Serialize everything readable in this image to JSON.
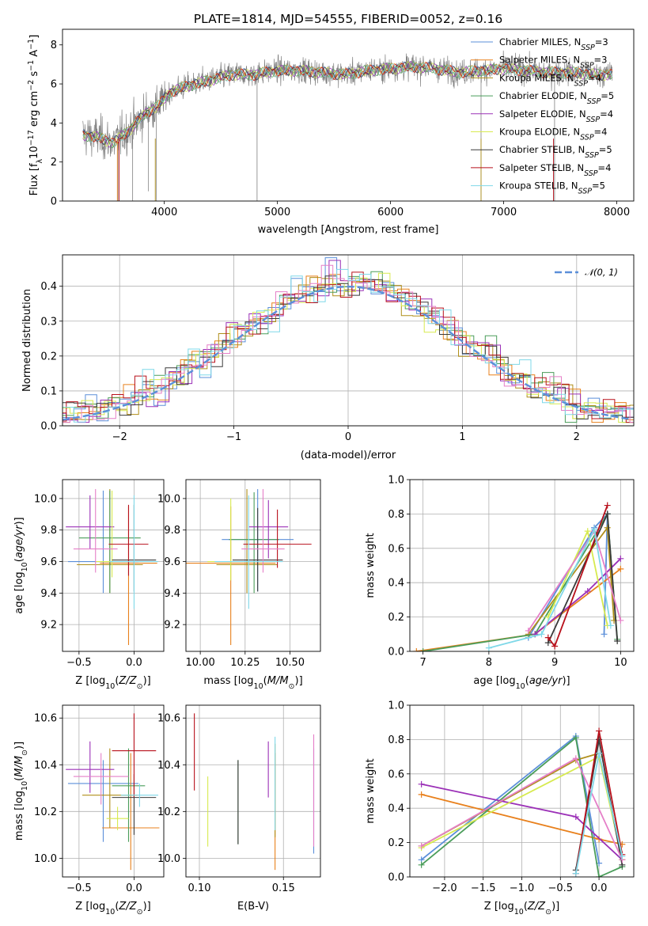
{
  "chart_data": [
    {
      "id": "spectrum",
      "type": "line",
      "title": "PLATE=1814, MJD=54555, FIBERID=0052, z=0.16",
      "xlabel": "wavelength [Angstrom, rest frame]",
      "ylabel": "Flux [f_λ 10^-17 erg cm^-2 s^-1 A^-1]",
      "xlim": [
        3100,
        8150
      ],
      "ylim": [
        0,
        8.8
      ],
      "xticks": [
        4000,
        5000,
        6000,
        7000,
        8000
      ],
      "yticks": [
        0,
        2,
        4,
        6,
        8
      ],
      "grid": false,
      "legend_position": "top-right",
      "series": [
        {
          "name": "Chabrier MILES, N_SSP=3",
          "color": "#5b8fd9"
        },
        {
          "name": "Salpeter MILES, N_SSP=3",
          "color": "#e8801c"
        },
        {
          "name": "Kroupa MILES, N_SSP=4",
          "color": "#b08f1a"
        },
        {
          "name": "Chabrier ELODIE, N_SSP=5",
          "color": "#4a9d5a"
        },
        {
          "name": "Salpeter ELODIE, N_SSP=4",
          "color": "#9b30b7"
        },
        {
          "name": "Kroupa ELODIE, N_SSP=4",
          "color": "#d7ea4f"
        },
        {
          "name": "Chabrier STELIB, N_SSP=5",
          "color": "#3a3a3a"
        },
        {
          "name": "Salpeter STELIB, N_SSP=4",
          "color": "#b8101b"
        },
        {
          "name": "Kroupa STELIB, N_SSP=5",
          "color": "#7fd8e8"
        }
      ],
      "data_color": "#808080",
      "model_anchor_x": [
        3280,
        3400,
        3550,
        3700,
        3850,
        3950,
        4050,
        4200,
        4400,
        4600,
        4800,
        5000,
        5200,
        5400,
        5600,
        5800,
        6000,
        6200,
        6400,
        6600,
        6800,
        7000,
        7200,
        7400,
        7600,
        7800,
        7960
      ],
      "model_anchor_y": [
        3.4,
        3.3,
        3.0,
        3.7,
        4.6,
        4.9,
        5.6,
        5.9,
        6.2,
        6.5,
        6.5,
        6.7,
        6.7,
        6.6,
        6.5,
        6.7,
        6.8,
        6.9,
        6.8,
        6.6,
        6.7,
        6.8,
        6.7,
        6.6,
        6.6,
        6.5,
        6.5
      ]
    },
    {
      "id": "residuals",
      "type": "histogram",
      "xlabel": "(data-model)/error",
      "ylabel": "Normed distribution",
      "xlim": [
        -2.5,
        2.5
      ],
      "ylim": [
        0,
        0.49
      ],
      "xticks": [
        -2,
        -1,
        0,
        1,
        2
      ],
      "yticks": [
        0.0,
        0.1,
        0.2,
        0.3,
        0.4
      ],
      "grid": true,
      "legend": "𝒩(0, 1)",
      "legend_position": "top-right",
      "normal_curve": {
        "mu": 0,
        "sigma": 1,
        "color": "#5b8fd9"
      }
    },
    {
      "id": "age-vs-Z",
      "type": "scatter",
      "xlabel": "Z [log10(Z/Z⊙)]",
      "ylabel": "age [log10(age/yr)]",
      "xlim": [
        -0.65,
        0.27
      ],
      "ylim": [
        9.03,
        10.12
      ],
      "xticks": [
        -0.5,
        0.0
      ],
      "yticks": [
        9.2,
        9.4,
        9.6,
        9.8,
        10.0
      ],
      "grid": true,
      "points": [
        {
          "x": -0.28,
          "y": 9.6,
          "xerr": 0.32,
          "yerr": [
            0.2,
            0.45
          ],
          "color": "#5b8fd9"
        },
        {
          "x": -0.05,
          "y": 9.59,
          "xerr": 0.26,
          "yerr": [
            0.52,
            0.36
          ],
          "color": "#e8801c"
        },
        {
          "x": -0.22,
          "y": 9.58,
          "xerr": 0.3,
          "yerr": [
            0.18,
            0.48
          ],
          "color": "#b08f1a"
        },
        {
          "x": -0.22,
          "y": 9.75,
          "xerr": 0.28,
          "yerr": [
            0.35,
            0.3
          ],
          "color": "#4a9d5a"
        },
        {
          "x": -0.4,
          "y": 9.82,
          "xerr": 0.22,
          "yerr": [
            0.14,
            0.2
          ],
          "color": "#9b30b7"
        },
        {
          "x": -0.2,
          "y": 9.6,
          "xerr": 0.15,
          "yerr": [
            0.1,
            0.45
          ],
          "color": "#d7ea4f"
        },
        {
          "x": 0.0,
          "y": 9.61,
          "xerr": 0.2,
          "yerr": [
            0.2,
            0.35
          ],
          "color": "#3a3a3a"
        },
        {
          "x": -0.05,
          "y": 9.71,
          "xerr": 0.18,
          "yerr": [
            0.2,
            0.25
          ],
          "color": "#b8101b"
        },
        {
          "x": -0.35,
          "y": 9.68,
          "xerr": 0.2,
          "yerr": [
            0.15,
            0.38
          ],
          "color": "#e57fc8"
        },
        {
          "x": 0.0,
          "y": 9.6,
          "xerr": 0.22,
          "yerr": [
            0.3,
            0.42
          ],
          "color": "#7fd8e8"
        }
      ]
    },
    {
      "id": "age-vs-mass",
      "type": "scatter",
      "xlabel": "mass [log10(M/M⊙)]",
      "ylabel": "",
      "xlim": [
        9.92,
        10.67
      ],
      "ylim": [
        9.03,
        10.12
      ],
      "xticks": [
        10.0,
        10.25,
        10.5
      ],
      "yticks": [
        9.2,
        9.4,
        9.6,
        9.8,
        10.0
      ],
      "grid": true,
      "points": [
        {
          "x": 10.32,
          "y": 9.74,
          "xerr": 0.2,
          "yerr": [
            0.33,
            0.32
          ],
          "color": "#5b8fd9"
        },
        {
          "x": 10.17,
          "y": 9.59,
          "xerr": 0.25,
          "yerr": [
            0.52,
            0.36
          ],
          "color": "#e8801c"
        },
        {
          "x": 10.26,
          "y": 9.58,
          "xerr": 0.17,
          "yerr": [
            0.18,
            0.48
          ],
          "color": "#b08f1a"
        },
        {
          "x": 10.3,
          "y": 9.74,
          "xerr": 0.14,
          "yerr": [
            0.34,
            0.3
          ],
          "color": "#4a9d5a"
        },
        {
          "x": 10.38,
          "y": 9.82,
          "xerr": 0.11,
          "yerr": [
            0.2,
            0.17
          ],
          "color": "#9b30b7"
        },
        {
          "x": 10.17,
          "y": 9.6,
          "xerr": 0.13,
          "yerr": [
            0.12,
            0.4
          ],
          "color": "#d7ea4f"
        },
        {
          "x": 10.32,
          "y": 9.61,
          "xerr": 0.14,
          "yerr": [
            0.2,
            0.33
          ],
          "color": "#3a3a3a"
        },
        {
          "x": 10.43,
          "y": 9.71,
          "xerr": 0.19,
          "yerr": [
            0.15,
            0.22
          ],
          "color": "#b8101b"
        },
        {
          "x": 10.35,
          "y": 9.68,
          "xerr": 0.12,
          "yerr": [
            0.15,
            0.38
          ],
          "color": "#e57fc8"
        },
        {
          "x": 10.27,
          "y": 9.6,
          "xerr": 0.19,
          "yerr": [
            0.3,
            0.42
          ],
          "color": "#7fd8e8"
        }
      ]
    },
    {
      "id": "weight-vs-age",
      "type": "line",
      "xlabel": "age [log10(age/yr)]",
      "ylabel": "mass weight",
      "xlim": [
        6.8,
        10.2
      ],
      "ylim": [
        0,
        1.0
      ],
      "xticks": [
        7,
        8,
        9,
        10
      ],
      "yticks": [
        0.0,
        0.2,
        0.4,
        0.6,
        0.8,
        1.0
      ],
      "grid": true,
      "series": [
        {
          "color": "#5b8fd9",
          "x": [
            8.6,
            9.6,
            9.8,
            9.75
          ],
          "y": [
            0.08,
            0.72,
            0.8,
            0.1
          ]
        },
        {
          "color": "#e8801c",
          "x": [
            6.9,
            8.7,
            10.0
          ],
          "y": [
            0.0,
            0.1,
            0.48
          ]
        },
        {
          "color": "#b08f1a",
          "x": [
            8.6,
            9.8,
            9.9
          ],
          "y": [
            0.1,
            0.72,
            0.18
          ]
        },
        {
          "color": "#4a9d5a",
          "x": [
            7.0,
            8.7,
            9.8,
            9.95
          ],
          "y": [
            0.0,
            0.1,
            0.8,
            0.07
          ]
        },
        {
          "color": "#9b30b7",
          "x": [
            8.7,
            9.5,
            10.0
          ],
          "y": [
            0.1,
            0.35,
            0.54
          ]
        },
        {
          "color": "#d7ea4f",
          "x": [
            8.9,
            9.5,
            9.8
          ],
          "y": [
            0.2,
            0.7,
            0.15
          ]
        },
        {
          "color": "#3a3a3a",
          "x": [
            8.9,
            9.8,
            9.95
          ],
          "y": [
            0.05,
            0.8,
            0.06
          ]
        },
        {
          "color": "#b8101b",
          "x": [
            8.9,
            9.0,
            9.8
          ],
          "y": [
            0.08,
            0.03,
            0.85
          ]
        },
        {
          "color": "#e57fc8",
          "x": [
            8.6,
            9.6,
            10.0
          ],
          "y": [
            0.12,
            0.7,
            0.18
          ]
        },
        {
          "color": "#7fd8e8",
          "x": [
            8.0,
            8.8,
            9.6,
            9.85
          ],
          "y": [
            0.02,
            0.1,
            0.71,
            0.15
          ]
        }
      ]
    },
    {
      "id": "mass-vs-Z",
      "type": "scatter",
      "xlabel": "Z [log10(Z/Z⊙)]",
      "ylabel": "mass [log10(M/M⊙)]",
      "xlim": [
        -0.65,
        0.27
      ],
      "ylim": [
        9.92,
        10.655
      ],
      "xticks": [
        -0.5,
        0.0
      ],
      "yticks": [
        10.0,
        10.2,
        10.4,
        10.6
      ],
      "grid": true,
      "points": [
        {
          "x": -0.28,
          "y": 10.32,
          "xerr": 0.32,
          "yerr": [
            0.25,
            0.1
          ],
          "color": "#5b8fd9"
        },
        {
          "x": -0.03,
          "y": 10.13,
          "xerr": 0.26,
          "yerr": [
            0.18,
            0.32
          ],
          "color": "#e8801c"
        },
        {
          "x": -0.22,
          "y": 10.27,
          "xerr": 0.25,
          "yerr": [
            0.14,
            0.2
          ],
          "color": "#b08f1a"
        },
        {
          "x": -0.05,
          "y": 10.31,
          "xerr": 0.15,
          "yerr": [
            0.24,
            0.16
          ],
          "color": "#4a9d5a"
        },
        {
          "x": -0.4,
          "y": 10.38,
          "xerr": 0.22,
          "yerr": [
            0.1,
            0.12
          ],
          "color": "#9b30b7"
        },
        {
          "x": -0.15,
          "y": 10.17,
          "xerr": 0.1,
          "yerr": [
            0.05,
            0.05
          ],
          "color": "#d7ea4f"
        },
        {
          "x": 0.0,
          "y": 10.26,
          "xerr": 0.2,
          "yerr": [
            0.16,
            0.1
          ],
          "color": "#3a3a3a"
        },
        {
          "x": 0.0,
          "y": 10.46,
          "xerr": 0.2,
          "yerr": [
            0.2,
            0.16
          ],
          "color": "#b8101b"
        },
        {
          "x": -0.3,
          "y": 10.35,
          "xerr": 0.25,
          "yerr": [
            0.12,
            0.1
          ],
          "color": "#e57fc8"
        },
        {
          "x": 0.05,
          "y": 10.27,
          "xerr": 0.17,
          "yerr": [
            0.05,
            0.05
          ],
          "color": "#7fd8e8"
        }
      ]
    },
    {
      "id": "mass-vs-EBV",
      "type": "scatter",
      "xlabel": "E(B-V)",
      "ylabel": "",
      "xlim": [
        0.092,
        0.172
      ],
      "ylim": [
        9.92,
        10.655
      ],
      "xticks": [
        0.1,
        0.15
      ],
      "yticks": [
        10.0,
        10.2,
        10.4,
        10.6
      ],
      "grid": true,
      "points": [
        {
          "x": 0.168,
          "y": 10.27,
          "yerr": [
            0.25,
            0.2
          ],
          "color": "#5b8fd9"
        },
        {
          "x": 0.145,
          "y": 10.13,
          "yerr": [
            0.18,
            0.32
          ],
          "color": "#e8801c"
        },
        {
          "x": 0.145,
          "y": 10.27,
          "yerr": [
            0.18,
            0.22
          ],
          "color": "#b08f1a"
        },
        {
          "x": 0.123,
          "y": 10.26,
          "yerr": [
            0.2,
            0.16
          ],
          "color": "#4a9d5a"
        },
        {
          "x": 0.141,
          "y": 10.38,
          "yerr": [
            0.12,
            0.12
          ],
          "color": "#9b30b7"
        },
        {
          "x": 0.105,
          "y": 10.17,
          "yerr": [
            0.12,
            0.18
          ],
          "color": "#d7ea4f"
        },
        {
          "x": 0.123,
          "y": 10.24,
          "yerr": [
            0.18,
            0.18
          ],
          "color": "#3a3a3a"
        },
        {
          "x": 0.097,
          "y": 10.46,
          "yerr": [
            0.17,
            0.16
          ],
          "color": "#b8101b"
        },
        {
          "x": 0.168,
          "y": 10.33,
          "yerr": [
            0.28,
            0.2
          ],
          "color": "#e57fc8"
        },
        {
          "x": 0.145,
          "y": 10.3,
          "yerr": [
            0.18,
            0.22
          ],
          "color": "#7fd8e8"
        }
      ]
    },
    {
      "id": "weight-vs-Z",
      "type": "line",
      "xlabel": "Z [log10(Z/Z⊙)]",
      "ylabel": "mass weight",
      "xlim": [
        -2.45,
        0.45
      ],
      "ylim": [
        0,
        1.0
      ],
      "xticks": [
        -2.0,
        -1.5,
        -1.0,
        -0.5,
        0.0
      ],
      "yticks": [
        0.0,
        0.2,
        0.4,
        0.6,
        0.8,
        1.0
      ],
      "grid": true,
      "series": [
        {
          "color": "#5b8fd9",
          "x": [
            -2.3,
            -0.3,
            0.0
          ],
          "y": [
            0.1,
            0.82,
            0.08
          ]
        },
        {
          "color": "#e8801c",
          "x": [
            -2.3,
            0.0,
            0.3
          ],
          "y": [
            0.48,
            0.22,
            0.19
          ]
        },
        {
          "color": "#b08f1a",
          "x": [
            -2.3,
            -0.3,
            0.0,
            0.3
          ],
          "y": [
            0.18,
            0.68,
            0.72,
            0.1
          ]
        },
        {
          "color": "#4a9d5a",
          "x": [
            -2.3,
            -0.3,
            0.0,
            0.3
          ],
          "y": [
            0.07,
            0.81,
            0.0,
            0.06
          ]
        },
        {
          "color": "#9b30b7",
          "x": [
            -2.3,
            -0.3,
            0.3
          ],
          "y": [
            0.54,
            0.35,
            0.1
          ]
        },
        {
          "color": "#d7ea4f",
          "x": [
            -2.3,
            0.0,
            0.3
          ],
          "y": [
            0.17,
            0.7,
            0.1
          ]
        },
        {
          "color": "#3a3a3a",
          "x": [
            -0.3,
            0.0,
            0.3
          ],
          "y": [
            0.04,
            0.8,
            0.07
          ]
        },
        {
          "color": "#b8101b",
          "x": [
            -0.3,
            0.0,
            0.3
          ],
          "y": [
            0.02,
            0.85,
            0.13
          ]
        },
        {
          "color": "#e57fc8",
          "x": [
            -2.3,
            -0.3,
            0.3
          ],
          "y": [
            0.18,
            0.69,
            0.1
          ]
        },
        {
          "color": "#7fd8e8",
          "x": [
            -0.3,
            0.0,
            0.3
          ],
          "y": [
            0.02,
            0.72,
            0.12
          ]
        }
      ]
    }
  ]
}
